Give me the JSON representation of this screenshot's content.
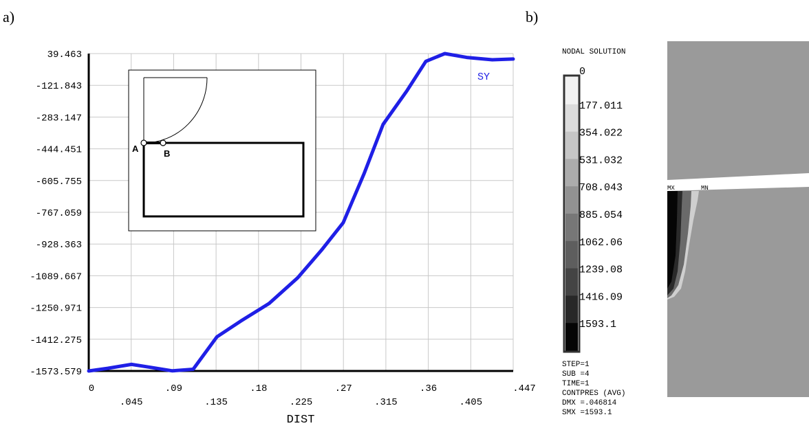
{
  "panel_a_label": "a)",
  "panel_b_label": "b)",
  "chart_data": {
    "type": "line",
    "title": "",
    "xlabel": "DIST",
    "ylabel": "",
    "xlim": [
      0,
      0.447
    ],
    "ylim": [
      -1573.579,
      39.463
    ],
    "x_ticks": [
      "0",
      ".045",
      ".09",
      ".135",
      ".18",
      ".225",
      ".27",
      ".315",
      ".36",
      ".405",
      ".447"
    ],
    "y_ticks": [
      "39.463",
      "-121.843",
      "-283.147",
      "-444.451",
      "-605.755",
      "-767.059",
      "-928.363",
      "-1089.667",
      "-1250.971",
      "-1412.275",
      "-1573.579"
    ],
    "grid": true,
    "series": [
      {
        "name": "SY",
        "color": "#1f1fe6",
        "x": [
          0,
          0.02,
          0.045,
          0.065,
          0.088,
          0.11,
          0.135,
          0.16,
          0.19,
          0.22,
          0.245,
          0.268,
          0.29,
          0.31,
          0.335,
          0.355,
          0.375,
          0.398,
          0.425,
          0.447
        ],
        "y": [
          -1573.579,
          -1560,
          -1540,
          -1555,
          -1573,
          -1565,
          -1400,
          -1320,
          -1230,
          -1100,
          -960,
          -820,
          -570,
          -320,
          -150,
          0,
          39.463,
          20,
          8,
          12
        ]
      }
    ],
    "inset": {
      "point_a_label": "A",
      "point_b_label": "B"
    }
  },
  "contour": {
    "title": "NODAL SOLUTION",
    "levels": [
      "0",
      "177.011",
      "354.022",
      "531.032",
      "708.043",
      "885.054",
      "1062.06",
      "1239.08",
      "1416.09",
      "1593.1"
    ],
    "band_colors": [
      "#f2f2f2",
      "#dcdcdc",
      "#c6c6c6",
      "#acacac",
      "#929292",
      "#777777",
      "#5e5e5e",
      "#444444",
      "#282828",
      "#050505"
    ],
    "info_lines": [
      "STEP=1",
      "SUB =4",
      "TIME=1",
      "CONTPRES (AVG)",
      "DMX =.046814",
      "SMX =1593.1"
    ],
    "mx_label": "MX",
    "mn_label": "MN"
  }
}
